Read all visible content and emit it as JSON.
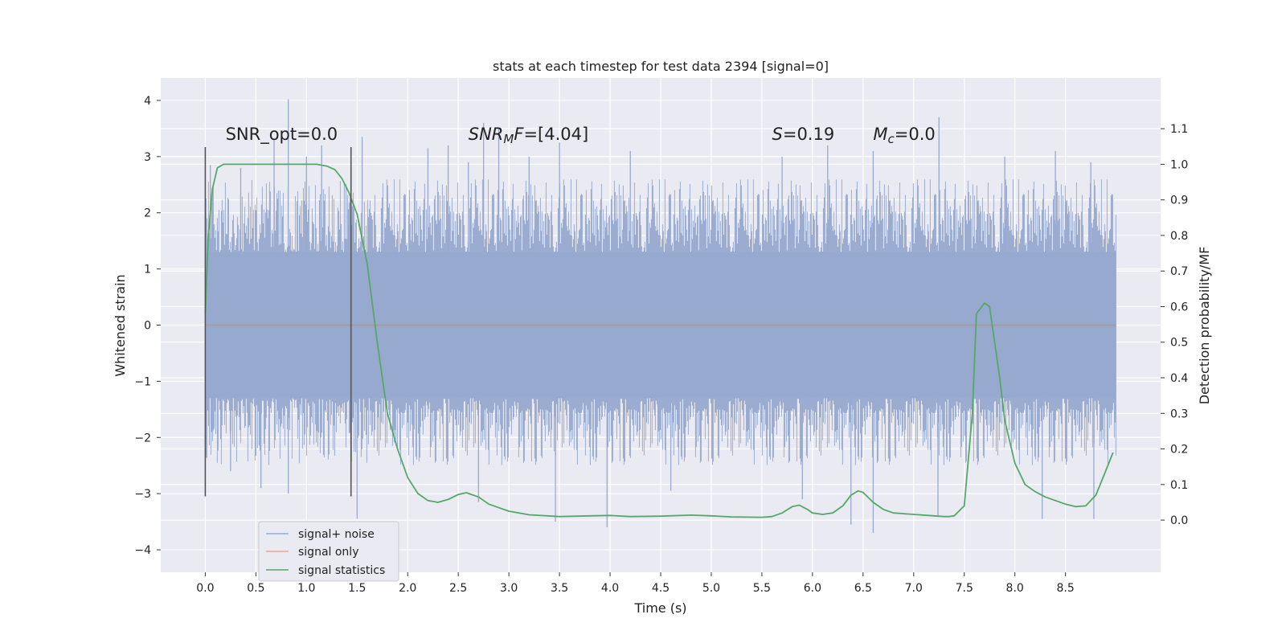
{
  "chart_data": {
    "type": "line",
    "title": "stats at each timestep for test data 2394 [signal=0]",
    "xlabel": "Time (s)",
    "ylabel": "Whitened strain",
    "y2label": "Detection probability/MF",
    "xlim": [
      -0.44,
      9.44
    ],
    "ylim": [
      -4.4,
      4.4
    ],
    "y2lim": [
      -0.1466,
      1.2426
    ],
    "xticks": [
      "0.0",
      "0.5",
      "1.0",
      "1.5",
      "2.0",
      "2.5",
      "3.0",
      "3.5",
      "4.0",
      "4.5",
      "5.0",
      "5.5",
      "6.0",
      "6.5",
      "7.0",
      "7.5",
      "8.0",
      "8.5"
    ],
    "yticks": [
      "4",
      "3",
      "2",
      "1",
      "0",
      "−1",
      "−2",
      "−3",
      "−4"
    ],
    "y2ticks": [
      "1.1",
      "1.0",
      "0.9",
      "0.8",
      "0.7",
      "0.6",
      "0.5",
      "0.4",
      "0.3",
      "0.2",
      "0.1",
      "0.0"
    ],
    "grid": true,
    "legend_position": "lower-left",
    "colors": {
      "background": "#eaeaf2",
      "grid": "#ffffff",
      "noise": "#98a9cf",
      "signal_only": "#e8a68f",
      "statistics": "#55a868",
      "marker": "#555555",
      "zero_line": "#a0a0a0"
    },
    "series": [
      {
        "name": "signal+ noise",
        "kind": "noise_band",
        "x_range": [
          0.0,
          9.0
        ],
        "dense_band": [
          -1.3,
          1.3
        ],
        "typical_max": 2.6,
        "typical_min": -2.5,
        "spikes": [
          {
            "x": 0.82,
            "y": 4.02
          },
          {
            "x": 0.68,
            "y": 3.3
          },
          {
            "x": 0.05,
            "y": 2.85
          },
          {
            "x": 0.35,
            "y": 2.8
          },
          {
            "x": 1.0,
            "y": 3.0
          },
          {
            "x": 1.15,
            "y": 3.2
          },
          {
            "x": 1.55,
            "y": 3.35
          },
          {
            "x": 2.2,
            "y": 3.15
          },
          {
            "x": 2.4,
            "y": 3.2
          },
          {
            "x": 2.6,
            "y": 2.9
          },
          {
            "x": 2.75,
            "y": 3.6
          },
          {
            "x": 2.9,
            "y": 3.5
          },
          {
            "x": 3.2,
            "y": 3.0
          },
          {
            "x": 3.5,
            "y": 3.25
          },
          {
            "x": 4.2,
            "y": 3.1
          },
          {
            "x": 5.7,
            "y": 3.0
          },
          {
            "x": 6.15,
            "y": 3.2
          },
          {
            "x": 6.6,
            "y": 3.1
          },
          {
            "x": 7.25,
            "y": 3.7
          },
          {
            "x": 7.9,
            "y": 3.0
          },
          {
            "x": 8.4,
            "y": 3.1
          },
          {
            "x": 8.75,
            "y": 2.9
          },
          {
            "x": 0.25,
            "y": -2.6
          },
          {
            "x": 0.55,
            "y": -2.9
          },
          {
            "x": 0.82,
            "y": -3.0
          },
          {
            "x": 1.5,
            "y": -3.45
          },
          {
            "x": 2.7,
            "y": -3.15
          },
          {
            "x": 3.46,
            "y": -3.5
          },
          {
            "x": 3.97,
            "y": -3.6
          },
          {
            "x": 4.6,
            "y": -2.95
          },
          {
            "x": 5.9,
            "y": -3.1
          },
          {
            "x": 6.38,
            "y": -3.55
          },
          {
            "x": 6.6,
            "y": -3.7
          },
          {
            "x": 7.24,
            "y": -3.4
          },
          {
            "x": 8.27,
            "y": -3.45
          },
          {
            "x": 8.78,
            "y": -3.45
          }
        ]
      },
      {
        "name": "signal only",
        "x": [
          0.0,
          9.0
        ],
        "y": [
          0.0,
          0.0
        ]
      },
      {
        "name": "signal statistics",
        "axis": "right",
        "x": [
          0.0,
          0.03,
          0.07,
          0.12,
          0.18,
          0.25,
          0.35,
          0.5,
          0.7,
          0.9,
          1.1,
          1.2,
          1.28,
          1.35,
          1.42,
          1.5,
          1.6,
          1.7,
          1.8,
          1.9,
          2.0,
          2.1,
          2.2,
          2.3,
          2.4,
          2.5,
          2.58,
          2.7,
          2.8,
          3.0,
          3.2,
          3.5,
          3.8,
          4.0,
          4.2,
          4.5,
          4.8,
          5.0,
          5.2,
          5.5,
          5.6,
          5.7,
          5.8,
          5.87,
          5.95,
          6.0,
          6.1,
          6.2,
          6.3,
          6.38,
          6.45,
          6.5,
          6.6,
          6.7,
          6.8,
          7.0,
          7.2,
          7.3,
          7.35,
          7.4,
          7.5,
          7.58,
          7.62,
          7.7,
          7.75,
          7.8,
          7.85,
          7.9,
          8.0,
          8.1,
          8.2,
          8.3,
          8.5,
          8.6,
          8.7,
          8.8,
          8.9,
          8.97
        ],
        "y": [
          0.58,
          0.8,
          0.93,
          0.99,
          1.0,
          1.0,
          1.0,
          1.0,
          1.0,
          1.0,
          1.0,
          0.995,
          0.985,
          0.96,
          0.92,
          0.86,
          0.72,
          0.5,
          0.3,
          0.2,
          0.12,
          0.075,
          0.055,
          0.05,
          0.058,
          0.072,
          0.077,
          0.065,
          0.045,
          0.025,
          0.015,
          0.01,
          0.012,
          0.013,
          0.01,
          0.011,
          0.014,
          0.012,
          0.009,
          0.008,
          0.01,
          0.02,
          0.038,
          0.042,
          0.03,
          0.02,
          0.016,
          0.02,
          0.04,
          0.07,
          0.082,
          0.078,
          0.05,
          0.03,
          0.02,
          0.016,
          0.012,
          0.01,
          0.01,
          0.012,
          0.04,
          0.3,
          0.58,
          0.61,
          0.6,
          0.5,
          0.4,
          0.28,
          0.16,
          0.1,
          0.08,
          0.065,
          0.045,
          0.038,
          0.04,
          0.07,
          0.14,
          0.19
        ]
      }
    ],
    "vertical_markers": [
      {
        "x": 0.0,
        "y_range": [
          -3.05,
          3.17
        ]
      },
      {
        "x": 1.44,
        "y_range": [
          -3.05,
          3.17
        ]
      }
    ],
    "annotations": [
      {
        "id": "snr-opt",
        "x": 0.2,
        "y": 3.3,
        "text": "SNR_opt=0.0",
        "parts": []
      },
      {
        "id": "snr-mf",
        "x": 2.6,
        "y": 3.3,
        "text": "",
        "parts": [
          {
            "text": "SNR",
            "italic": true,
            "sub": false
          },
          {
            "text": "M",
            "italic": true,
            "sub": true
          },
          {
            "text": "F",
            "italic": true,
            "sub": false
          },
          {
            "text": "=[4.04]",
            "italic": false,
            "sub": false
          }
        ]
      },
      {
        "id": "s",
        "x": 5.6,
        "y": 3.3,
        "text": "",
        "parts": [
          {
            "text": "S",
            "italic": true,
            "sub": false
          },
          {
            "text": "=0.19",
            "italic": false,
            "sub": false
          }
        ]
      },
      {
        "id": "mc",
        "x": 6.6,
        "y": 3.3,
        "text": "",
        "parts": [
          {
            "text": "M",
            "italic": true,
            "sub": false
          },
          {
            "text": "c",
            "italic": true,
            "sub": true
          },
          {
            "text": "=0.0",
            "italic": false,
            "sub": false
          }
        ]
      }
    ]
  }
}
